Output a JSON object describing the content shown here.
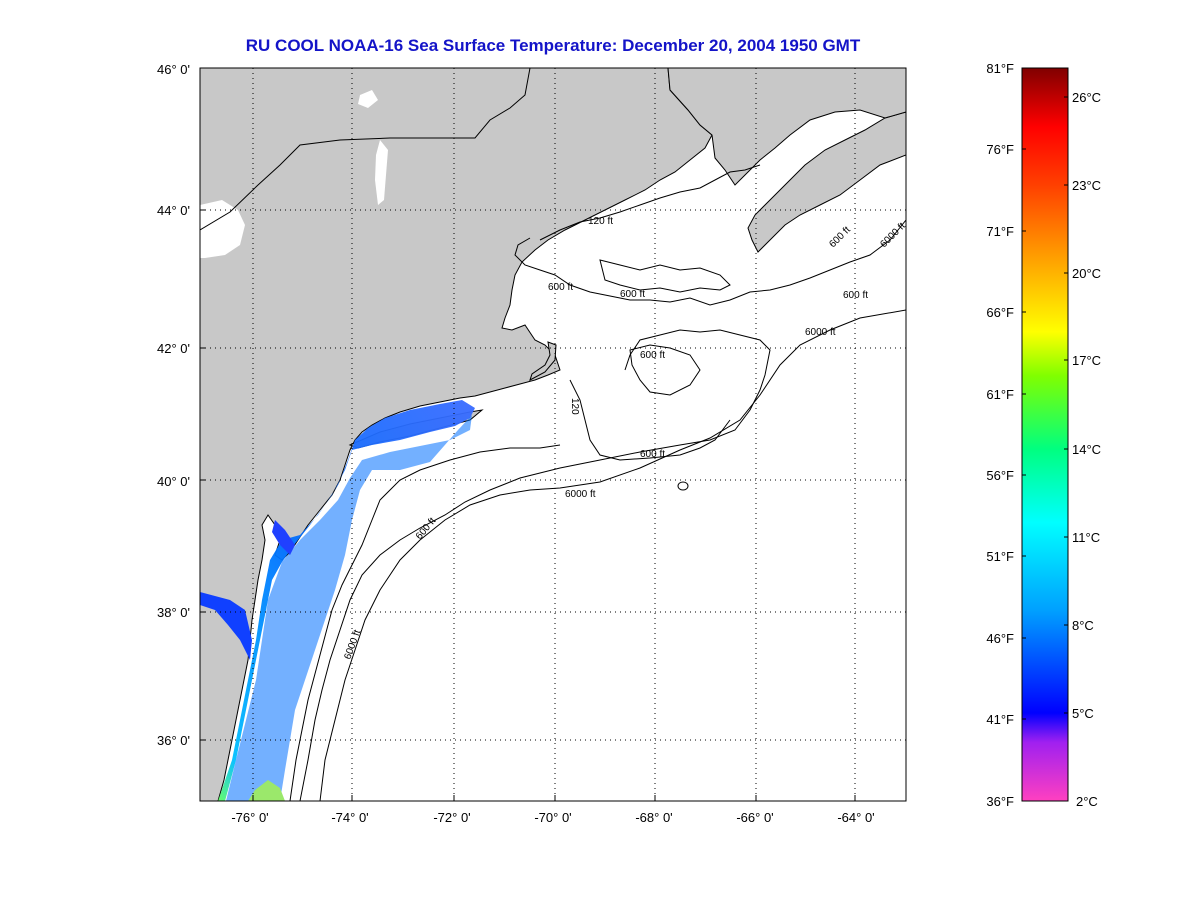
{
  "title": "RU COOL  NOAA-16  Sea Surface Temperature:  December 20, 2004 1950 GMT",
  "map": {
    "lat_ticks": [
      "46° 0'",
      "44° 0'",
      "42° 0'",
      "40° 0'",
      "38° 0'",
      "36° 0'"
    ],
    "lon_ticks": [
      "-76° 0'",
      "-74° 0'",
      "-72° 0'",
      "-70° 0'",
      "-68° 0'",
      "-66° 0'",
      "-64° 0'"
    ],
    "lat_range": [
      35,
      46
    ],
    "lon_range": [
      -77,
      -63
    ],
    "grid": "dotted",
    "land_color": "#c8c8c8",
    "contour_labels": [
      "120 ft",
      "600 ft",
      "600 ft",
      "600 ft",
      "6000 ft",
      "600 ft",
      "6000 ft",
      "120",
      "6000 ft",
      "600 ft",
      "600 ft",
      "6000 ft",
      "600 ft"
    ]
  },
  "colorbar": {
    "fahrenheit_labels": [
      "81°F",
      "76°F",
      "71°F",
      "66°F",
      "61°F",
      "56°F",
      "51°F",
      "46°F",
      "41°F",
      "36°F"
    ],
    "celsius_labels": [
      "26°C",
      "23°C",
      "20°C",
      "17°C",
      "14°C",
      "11°C",
      "8°C",
      "5°C",
      "2°C"
    ],
    "range_f": [
      36,
      81
    ],
    "colors": [
      "#ff40c0",
      "#a020f0",
      "#0000ff",
      "#00a0ff",
      "#00ffff",
      "#00ff80",
      "#80ff00",
      "#ffff00",
      "#ffa000",
      "#ff4000",
      "#ff0000",
      "#800000"
    ]
  }
}
